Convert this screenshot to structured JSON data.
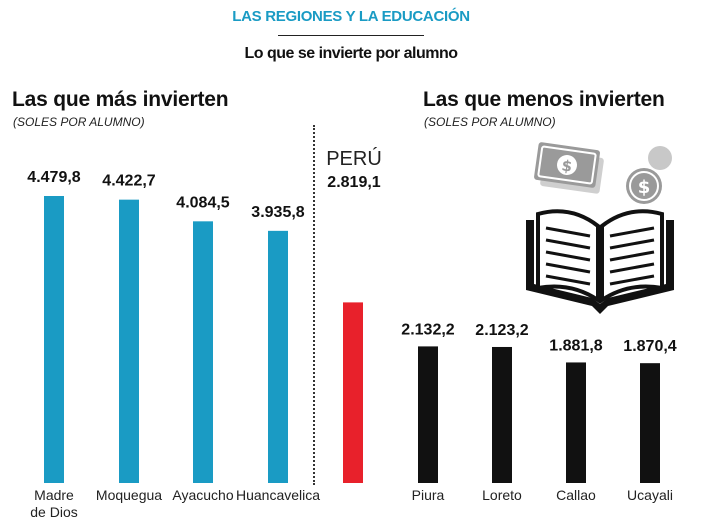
{
  "header": {
    "kicker": "LAS REGIONES Y LA EDUCACIÓN",
    "subtitle": "Lo que se invierte por alumno"
  },
  "left_panel": {
    "title": "Las que más invierten",
    "unit": "(SOLES POR ALUMNO)"
  },
  "right_panel": {
    "title": "Las que menos invierten",
    "unit": "(SOLES POR ALUMNO)"
  },
  "national": {
    "label": "PERÚ",
    "value_label": "2.819,1"
  },
  "colors": {
    "top": "#1a9bc4",
    "national": "#e8212b",
    "bottom": "#111111",
    "accent": "#1a9bc4"
  },
  "illustration": {
    "icon": "book-with-coins-icon"
  },
  "chart_data": {
    "type": "bar",
    "ylim": [
      0,
      4800
    ],
    "groups": [
      {
        "group": "top",
        "categories": [
          "Madre de Dios",
          "Moquegua",
          "Ayacucho",
          "Huancavelica"
        ],
        "category_lines": [
          [
            "Madre",
            "de Dios"
          ],
          [
            "Moquegua"
          ],
          [
            "Ayacucho"
          ],
          [
            "Huancavelica"
          ]
        ],
        "values": [
          4479.8,
          4422.7,
          4084.5,
          3935.8
        ],
        "value_labels": [
          "4.479,8",
          "4.422,7",
          "4.084,5",
          "3.935,8"
        ]
      },
      {
        "group": "national",
        "categories": [
          "PERÚ"
        ],
        "values": [
          2819.1
        ],
        "value_labels": [
          "2.819,1"
        ]
      },
      {
        "group": "bottom",
        "categories": [
          "Piura",
          "Loreto",
          "Callao",
          "Ucayali"
        ],
        "category_lines": [
          [
            "Piura"
          ],
          [
            "Loreto"
          ],
          [
            "Callao"
          ],
          [
            "Ucayali"
          ]
        ],
        "values": [
          2132.2,
          2123.2,
          1881.8,
          1870.4
        ],
        "value_labels": [
          "2.132,2",
          "2.123,2",
          "1.881,8",
          "1.870,4"
        ]
      }
    ]
  }
}
